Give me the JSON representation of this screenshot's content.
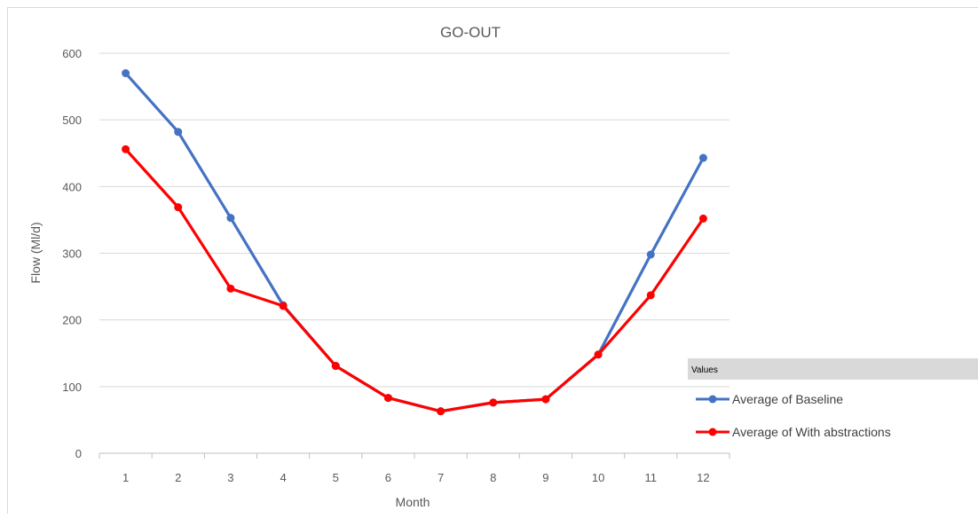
{
  "chart_data": {
    "type": "line",
    "title": "GO-OUT",
    "xlabel": "Month",
    "ylabel": "Flow (Ml/d)",
    "categories": [
      "1",
      "2",
      "3",
      "4",
      "5",
      "6",
      "7",
      "8",
      "9",
      "10",
      "11",
      "12"
    ],
    "ylim": [
      0,
      600
    ],
    "yticks": [
      "0",
      "100",
      "200",
      "300",
      "400",
      "500",
      "600"
    ],
    "grid": true,
    "legend_title": "Values",
    "legend_position": "right",
    "series": [
      {
        "name": "Average of Baseline",
        "color": "#4472C4",
        "values": [
          570,
          482,
          353,
          222,
          131,
          83,
          63,
          76,
          81,
          148,
          298,
          443
        ]
      },
      {
        "name": "Average of With abstractions",
        "color": "#FF0000",
        "values": [
          456,
          369,
          247,
          221,
          131,
          83,
          63,
          76,
          81,
          148,
          237,
          352
        ]
      }
    ]
  }
}
